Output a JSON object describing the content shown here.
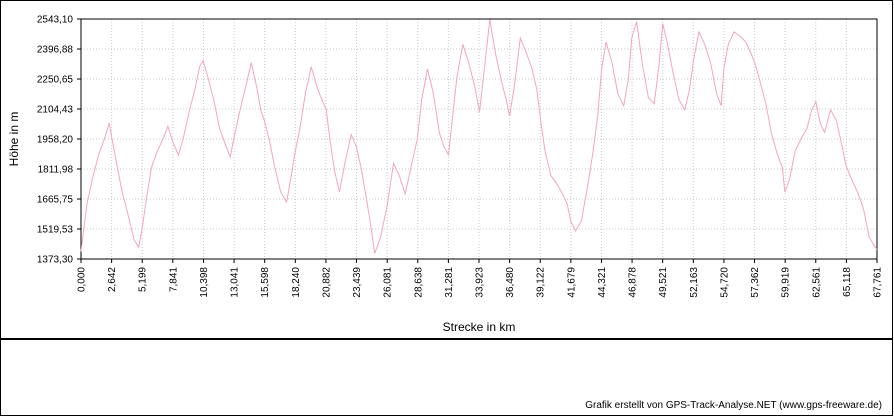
{
  "chart_data": {
    "type": "line",
    "xlabel": "Strecke  in  km",
    "ylabel": "Höhe  in  m",
    "xlim": [
      0.0,
      67.761
    ],
    "ylim": [
      1373.3,
      2543.1
    ],
    "x_ticks": [
      "0,000",
      "2,642",
      "5,199",
      "7,841",
      "10,398",
      "13,041",
      "15,598",
      "18,240",
      "20,882",
      "23,439",
      "26,081",
      "28,638",
      "31,281",
      "33,923",
      "36,480",
      "39,122",
      "41,679",
      "44,321",
      "46,878",
      "49,521",
      "52,163",
      "54,720",
      "57,362",
      "59,919",
      "62,561",
      "65,118",
      "67,761"
    ],
    "y_ticks": [
      "1373,30",
      "1519,53",
      "1665,75",
      "1811,98",
      "1958,20",
      "2104,43",
      "2250,65",
      "2396,88",
      "2543,10"
    ],
    "grid": true,
    "line_color": "#f4a6bb",
    "series": [
      {
        "x": [
          0.0,
          0.5,
          1.0,
          1.5,
          2.0,
          2.4,
          2.642,
          3.0,
          3.5,
          4.0,
          4.5,
          4.9,
          5.199,
          5.6,
          6.0,
          6.5,
          7.0,
          7.4,
          7.841,
          8.3,
          8.7,
          9.2,
          9.7,
          10.1,
          10.398,
          10.8,
          11.3,
          11.8,
          12.3,
          12.7,
          13.041,
          13.5,
          14.0,
          14.5,
          15.0,
          15.3,
          15.598,
          16.0,
          16.5,
          17.0,
          17.5,
          17.9,
          18.24,
          18.6,
          19.1,
          19.6,
          20.1,
          20.5,
          20.882,
          21.2,
          21.6,
          22.0,
          22.5,
          23.0,
          23.439,
          23.8,
          24.2,
          24.6,
          25.0,
          25.5,
          26.081,
          26.6,
          27.1,
          27.6,
          28.2,
          28.638,
          29.0,
          29.5,
          30.0,
          30.5,
          30.9,
          31.281,
          31.6,
          32.0,
          32.5,
          33.0,
          33.5,
          33.923,
          34.3,
          34.8,
          35.3,
          35.8,
          36.2,
          36.48,
          36.9,
          37.4,
          37.9,
          38.4,
          38.8,
          39.122,
          39.5,
          40.0,
          40.5,
          41.0,
          41.4,
          41.679,
          42.1,
          42.6,
          43.1,
          43.6,
          44.0,
          44.321,
          44.7,
          45.2,
          45.7,
          46.2,
          46.6,
          46.878,
          47.3,
          47.8,
          48.3,
          48.8,
          49.2,
          49.521,
          49.9,
          50.4,
          50.9,
          51.4,
          51.8,
          52.163,
          52.6,
          53.1,
          53.6,
          54.1,
          54.5,
          54.72,
          55.1,
          55.6,
          56.1,
          56.6,
          57.0,
          57.362,
          57.8,
          58.3,
          58.8,
          59.3,
          59.7,
          59.919,
          60.3,
          60.8,
          61.3,
          61.8,
          62.2,
          62.561,
          62.9,
          63.3,
          63.8,
          64.3,
          64.8,
          65.118,
          65.6,
          66.1,
          66.6,
          67.1,
          67.5,
          67.761
        ],
        "y": [
          1410,
          1640,
          1770,
          1880,
          1960,
          2035,
          1960,
          1850,
          1700,
          1590,
          1470,
          1430,
          1520,
          1680,
          1820,
          1900,
          1960,
          2020,
          1940,
          1880,
          1960,
          2090,
          2200,
          2310,
          2340,
          2260,
          2150,
          2010,
          1930,
          1870,
          1970,
          2090,
          2210,
          2330,
          2200,
          2100,
          2050,
          1960,
          1820,
          1700,
          1650,
          1780,
          1900,
          2000,
          2180,
          2310,
          2210,
          2150,
          2100,
          1950,
          1800,
          1700,
          1850,
          1980,
          1920,
          1830,
          1700,
          1560,
          1400,
          1480,
          1640,
          1840,
          1780,
          1690,
          1850,
          1960,
          2150,
          2300,
          2180,
          1990,
          1920,
          1880,
          2050,
          2260,
          2420,
          2330,
          2220,
          2090,
          2280,
          2540,
          2370,
          2240,
          2150,
          2070,
          2220,
          2450,
          2380,
          2300,
          2200,
          2050,
          1900,
          1780,
          1740,
          1690,
          1640,
          1560,
          1510,
          1560,
          1720,
          1900,
          2080,
          2300,
          2430,
          2330,
          2180,
          2120,
          2250,
          2450,
          2530,
          2320,
          2160,
          2130,
          2320,
          2520,
          2430,
          2280,
          2150,
          2100,
          2200,
          2350,
          2480,
          2420,
          2330,
          2180,
          2120,
          2300,
          2420,
          2480,
          2460,
          2430,
          2380,
          2330,
          2240,
          2130,
          1980,
          1880,
          1820,
          1700,
          1760,
          1900,
          1960,
          2010,
          2100,
          2140,
          2040,
          1990,
          2100,
          2050,
          1920,
          1830,
          1760,
          1700,
          1620,
          1480,
          1440,
          1420
        ]
      }
    ]
  },
  "credit": "Grafik erstellt von GPS-Track-Analyse.NET (www.gps-freeware.de)"
}
